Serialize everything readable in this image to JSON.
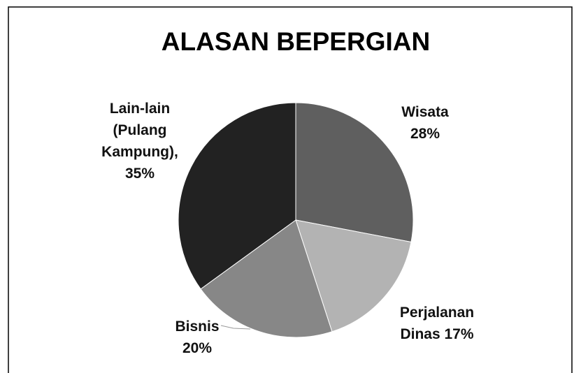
{
  "chart_data": {
    "type": "pie",
    "title": "ALASAN BEPERGIAN",
    "categories": [
      "Wisata",
      "Perjalanan Dinas",
      "Bisnis",
      "Lain-lain (Pulang Kampung),"
    ],
    "values": [
      28,
      17,
      20,
      35
    ],
    "value_labels": [
      "28%",
      "17%",
      "20%",
      "35%"
    ],
    "colors": [
      "#5f5f5f",
      "#b3b3b3",
      "#878787",
      "#222222"
    ]
  }
}
